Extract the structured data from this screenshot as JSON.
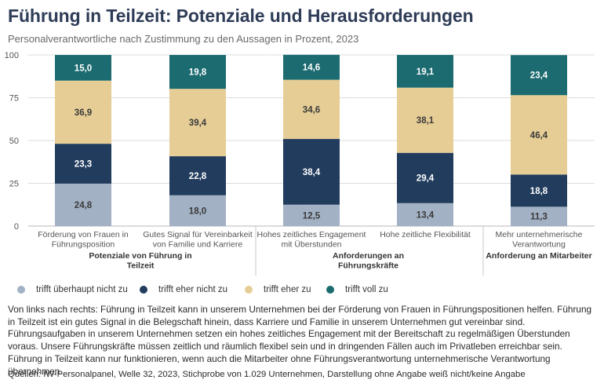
{
  "title": "Führung in Teilzeit: Potenziale und Herausforderungen",
  "subtitle": "Personalverantwortliche nach Zustimmung zu den Aussagen in Prozent, 2023",
  "chart_data": {
    "type": "bar",
    "stacked": true,
    "ylim": [
      0,
      100
    ],
    "yticks": [
      0,
      25,
      50,
      75,
      100
    ],
    "grid": true,
    "categories": [
      [
        "Förderung von Frauen in",
        "Führungsposition"
      ],
      [
        "Gutes Signal für Vereinbarkeit",
        "von Familie und Karriere"
      ],
      [
        "Hohes zeitliches Engagement",
        "mit Überstunden"
      ],
      [
        "Hohe zeitliche Flexibilität"
      ],
      [
        "Mehr unternehmerische",
        "Verantwortung"
      ]
    ],
    "groups": [
      {
        "label": [
          "Potenziale von Führung in",
          "Teilzeit"
        ],
        "categories": [
          0,
          1
        ]
      },
      {
        "label": [
          "Anforderungen an",
          "Führungskräfte"
        ],
        "categories": [
          2,
          3
        ]
      },
      {
        "label": [
          "Anforderung an Mitarbeiter"
        ],
        "categories": [
          4
        ]
      }
    ],
    "series": [
      {
        "name": "trifft überhaupt nicht zu",
        "color": "#a3b1c4",
        "values": [
          24.8,
          18.0,
          12.5,
          13.4,
          11.3
        ],
        "labels": [
          "24,8",
          "18,0",
          "12,5",
          "13,4",
          "11,3"
        ]
      },
      {
        "name": "trifft eher nicht zu",
        "color": "#223c5e",
        "values": [
          23.3,
          22.8,
          38.4,
          29.4,
          18.8
        ],
        "labels": [
          "23,3",
          "22,8",
          "38,4",
          "29,4",
          "18,8"
        ]
      },
      {
        "name": "trifft eher zu",
        "color": "#e6cd96",
        "values": [
          36.9,
          39.4,
          34.6,
          38.1,
          46.4
        ],
        "labels": [
          "36,9",
          "39,4",
          "34,6",
          "38,1",
          "46,4"
        ]
      },
      {
        "name": "trifft voll zu",
        "color": "#1b6b70",
        "values": [
          15.0,
          19.8,
          14.6,
          19.1,
          23.4
        ],
        "labels": [
          "15,0",
          "19,8",
          "14,6",
          "19,1",
          "23,4"
        ]
      }
    ]
  },
  "description": "Von links nach rechts: Führung in Teilzeit kann in unserem Unternehmen bei der Förderung von Frauen in Führungspositionen helfen. Führung in Teilzeit ist ein gutes Signal in die Belegschaft hinein, dass Karriere und Familie in unserem Unternehmen gut vereinbar sind. Führungsaufgaben in unserem Unternehmen setzen ein hohes zeitliches Engagement mit der Bereitschaft zu regelmäßigen Überstunden voraus. Unsere Führungskräfte müssen zeitlich und räumlich flexibel sein und in dringenden Fällen auch im Privatleben erreichbar sein. Führung in Teilzeit kann nur funktionieren, wenn auch die Mitarbeiter ohne Führungsverantwortung unternehmerische Verantwortung übernehmen.",
  "source": "Quellen: IW-Personalpanel, Welle 32, 2023, Stichprobe von 1.029 Unternehmen, Darstellung ohne Angabe weiß nicht/keine Angabe"
}
